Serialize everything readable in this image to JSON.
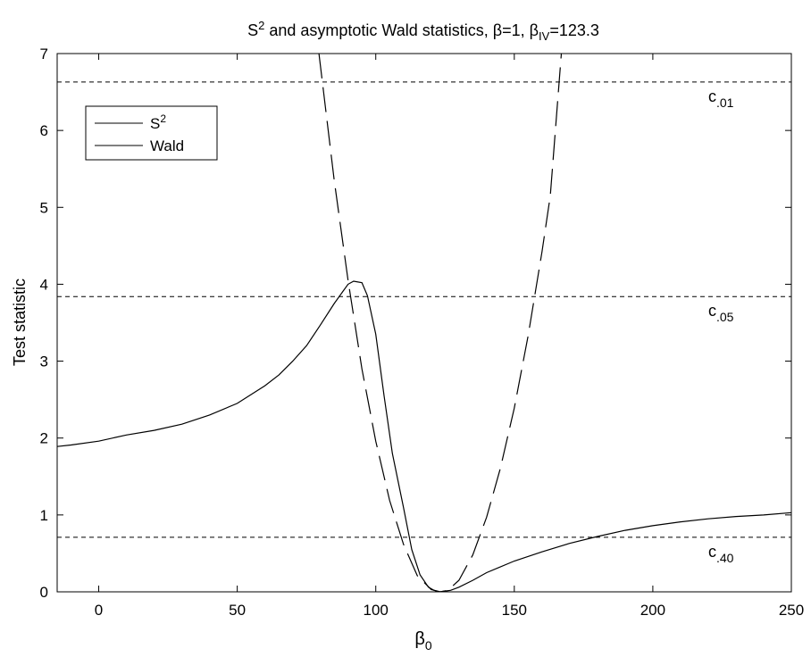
{
  "chart_data": {
    "type": "line",
    "title": {
      "prefix": "S",
      "prefix_sup": "2",
      "middle": " and asymptotic Wald statistics, β=1, β",
      "sub": "IV",
      "suffix": "=123.3"
    },
    "xlabel": {
      "main": "β",
      "sub": "0"
    },
    "ylabel": "Test statistic",
    "xlim": [
      -15,
      250
    ],
    "ylim": [
      0,
      7
    ],
    "xticks": [
      0,
      50,
      100,
      150,
      200,
      250
    ],
    "yticks": [
      0,
      1,
      2,
      3,
      4,
      5,
      6,
      7
    ],
    "grid": false,
    "legend": {
      "position": "top-left",
      "entries": [
        {
          "label": "S",
          "sup": "2"
        },
        {
          "label": "Wald",
          "sup": ""
        }
      ]
    },
    "series": [
      {
        "name": "S²",
        "style": "solid",
        "x": [
          -15,
          -10,
          0,
          10,
          20,
          30,
          40,
          50,
          60,
          65,
          70,
          75,
          80,
          85,
          88,
          90,
          92,
          95,
          97,
          100,
          103,
          106,
          110,
          113,
          116,
          119,
          121,
          123,
          125,
          127,
          130,
          135,
          140,
          150,
          160,
          170,
          180,
          190,
          200,
          210,
          220,
          230,
          240,
          250
        ],
        "y": [
          1.89,
          1.91,
          1.96,
          2.04,
          2.1,
          2.18,
          2.3,
          2.45,
          2.68,
          2.82,
          3.0,
          3.2,
          3.47,
          3.75,
          3.9,
          4.0,
          4.04,
          4.02,
          3.85,
          3.35,
          2.55,
          1.8,
          1.1,
          0.55,
          0.22,
          0.06,
          0.02,
          0.0,
          0.01,
          0.02,
          0.06,
          0.15,
          0.25,
          0.4,
          0.52,
          0.63,
          0.72,
          0.8,
          0.86,
          0.91,
          0.95,
          0.98,
          1.0,
          1.03
        ]
      },
      {
        "name": "Wald",
        "style": "dashed",
        "x": [
          79.5,
          85,
          90,
          95,
          100,
          105,
          110,
          115,
          120,
          123.3,
          126,
          130,
          135,
          140,
          145,
          150,
          155,
          160,
          163,
          167
        ],
        "y": [
          7.0,
          5.35,
          4.05,
          2.9,
          1.96,
          1.19,
          0.62,
          0.21,
          0.03,
          0.0,
          0.02,
          0.15,
          0.48,
          0.97,
          1.61,
          2.39,
          3.33,
          4.42,
          5.15,
          7.0
        ]
      }
    ],
    "critical_values": [
      {
        "label": "c",
        "sub": ".01",
        "value": 6.63
      },
      {
        "label": "c",
        "sub": ".05",
        "value": 3.84
      },
      {
        "label": "c",
        "sub": ".40",
        "value": 0.71
      }
    ]
  }
}
